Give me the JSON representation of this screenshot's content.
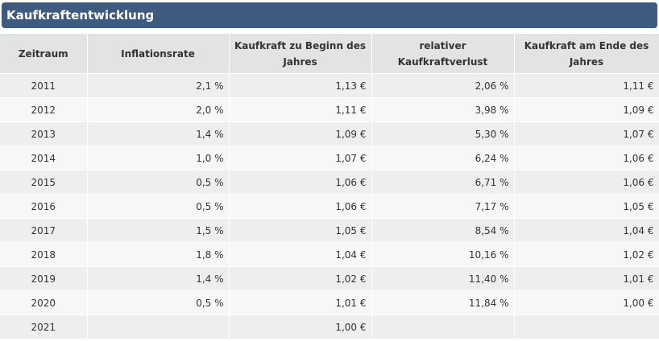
{
  "panel": {
    "title": "Kaufkraftentwicklung"
  },
  "table": {
    "headers": [
      "Zeitraum",
      "Inflationsrate",
      "Kaufkraft zu Beginn des Jahres",
      "relativer Kaufkraftverlust",
      "Kaufkraft am Ende des Jahres"
    ],
    "rows": [
      [
        "2011",
        "2,1 %",
        "1,13 €",
        "2,06 %",
        "1,11 €"
      ],
      [
        "2012",
        "2,0 %",
        "1,11 €",
        "3,98 %",
        "1,09 €"
      ],
      [
        "2013",
        "1,4 %",
        "1,09 €",
        "5,30 %",
        "1,07 €"
      ],
      [
        "2014",
        "1,0 %",
        "1,07 €",
        "6,24 %",
        "1,06 €"
      ],
      [
        "2015",
        "0,5 %",
        "1,06 €",
        "6,71 %",
        "1,06 €"
      ],
      [
        "2016",
        "0,5 %",
        "1,06 €",
        "7,17 %",
        "1,05 €"
      ],
      [
        "2017",
        "1,5 %",
        "1,05 €",
        "8,54 %",
        "1,04 €"
      ],
      [
        "2018",
        "1,8 %",
        "1,04 €",
        "10,16 %",
        "1,02 €"
      ],
      [
        "2019",
        "1,4 %",
        "1,02 €",
        "11,40 %",
        "1,01 €"
      ],
      [
        "2020",
        "0,5 %",
        "1,01 €",
        "11,84 %",
        "1,00 €"
      ],
      [
        "2021",
        "",
        "1,00 €",
        "",
        ""
      ]
    ]
  },
  "colors": {
    "header_bar": "#3f5a7f",
    "header_text": "#ffffff",
    "table_head_bg": "#e2e3e5",
    "row_odd": "#eeeeee",
    "row_even": "#f7f7f7"
  }
}
